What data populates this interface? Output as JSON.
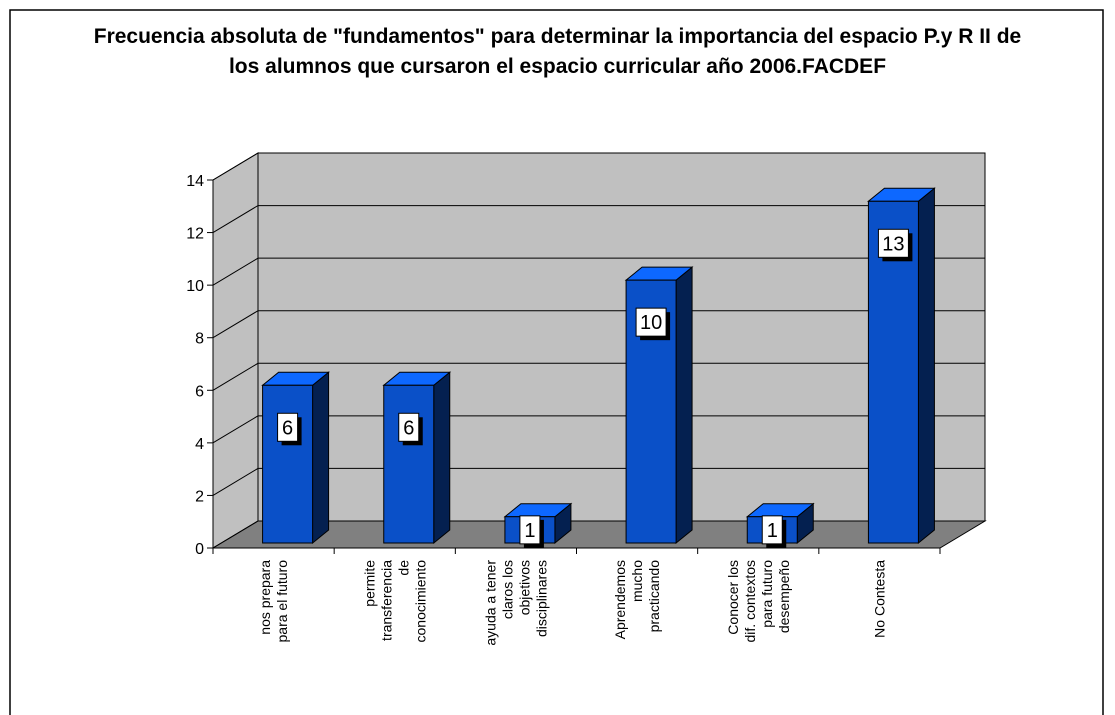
{
  "chart_data": {
    "type": "bar3d",
    "title": "Frecuencia absoluta de \"fundamentos\" para determinar la importancia del espacio P.y R II de los alumnos que cursaron el espacio curricular año 2006.FACDEF",
    "categories": [
      "nos prepara para el futuro",
      "permite transferencia de conocimiento",
      "ayuda a tener claros los objetivos disciplinares",
      "Aprendemos mucho practicando",
      "Conocer los dif. contextos para futuro desempeño",
      "No Contesta"
    ],
    "values": [
      6,
      6,
      1,
      10,
      1,
      13
    ],
    "color": "#0a50c8",
    "ylim": [
      0,
      14
    ],
    "yticks": [
      0,
      2,
      4,
      6,
      8,
      10,
      12,
      14
    ],
    "grid": true
  }
}
